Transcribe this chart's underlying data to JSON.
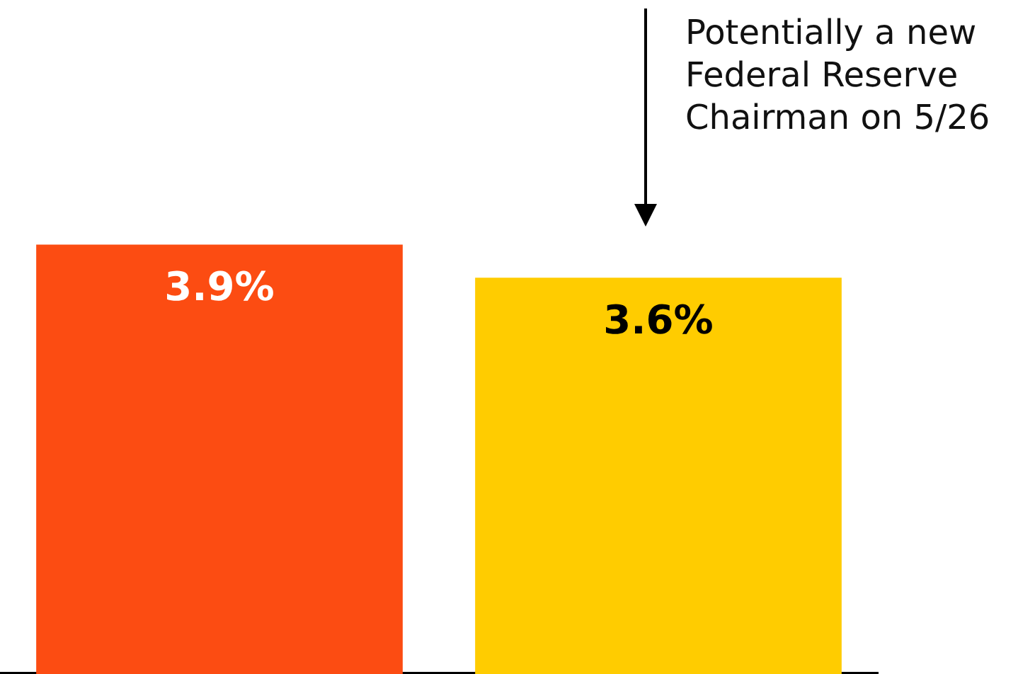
{
  "chart_data": {
    "type": "bar",
    "categories": [
      null,
      null
    ],
    "values": [
      3.9,
      3.6
    ],
    "colors": [
      "#fc4c12",
      "#ffcc00"
    ],
    "value_labels": [
      "3.9%",
      "3.6%"
    ],
    "tick_labels": false,
    "grid": false,
    "legend": false,
    "annotations": [
      "Potentially a new Federal Reserve Chairman on 5/26"
    ]
  }
}
